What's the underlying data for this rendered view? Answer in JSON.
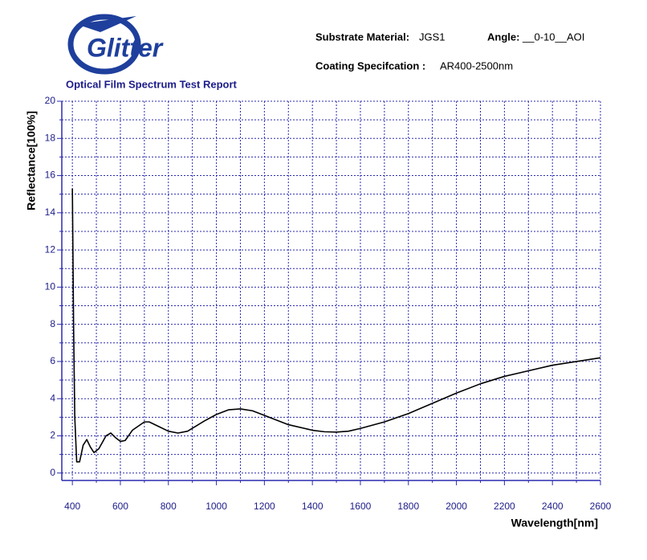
{
  "logo": "Glitter",
  "report_title": "Optical Film Spectrum Test Report",
  "info": {
    "substrate_label": "Substrate Material:",
    "substrate_value": "JGS1",
    "angle_label": "Angle:",
    "angle_value": "__0-10__AOI",
    "coating_label": "Coating Specifcation :",
    "coating_value": "AR400-2500nm"
  },
  "chart_data": {
    "type": "line",
    "x_label": "Wavelength[nm]",
    "y_label": "Reflectance[100%]",
    "x": [
      400,
      405,
      410,
      418,
      430,
      445,
      460,
      475,
      490,
      510,
      540,
      560,
      580,
      600,
      620,
      650,
      700,
      720,
      760,
      800,
      840,
      880,
      950,
      1000,
      1050,
      1100,
      1150,
      1200,
      1300,
      1400,
      1450,
      1500,
      1550,
      1600,
      1700,
      1800,
      1900,
      2000,
      2100,
      2200,
      2300,
      2400,
      2500,
      2600
    ],
    "series": [
      {
        "name": "Reflectance",
        "color": "#000000",
        "values": [
          15.3,
          8,
          3,
          0.6,
          0.6,
          1.5,
          1.8,
          1.4,
          1.1,
          1.3,
          2.0,
          2.15,
          1.9,
          1.7,
          1.75,
          2.3,
          2.75,
          2.75,
          2.5,
          2.25,
          2.15,
          2.25,
          2.8,
          3.15,
          3.4,
          3.45,
          3.35,
          3.1,
          2.6,
          2.3,
          2.22,
          2.2,
          2.25,
          2.4,
          2.75,
          3.2,
          3.75,
          4.3,
          4.8,
          5.2,
          5.5,
          5.8,
          6.0,
          6.2
        ]
      }
    ],
    "xlim": [
      356,
      2600
    ],
    "ylim": [
      -0.4,
      20
    ],
    "xticks": [
      400,
      600,
      800,
      1000,
      1200,
      1400,
      1600,
      1800,
      2000,
      2200,
      2400,
      2600
    ],
    "yticks": [
      0,
      2,
      4,
      6,
      8,
      10,
      12,
      14,
      16,
      18,
      20
    ],
    "minor_xticks": [
      500,
      700,
      900,
      1100,
      1300,
      1500,
      1700,
      1900,
      2100,
      2300,
      2500
    ],
    "minor_yticks": [
      1,
      3,
      5,
      7,
      9,
      11,
      13,
      15,
      17,
      19
    ],
    "grid": true
  }
}
